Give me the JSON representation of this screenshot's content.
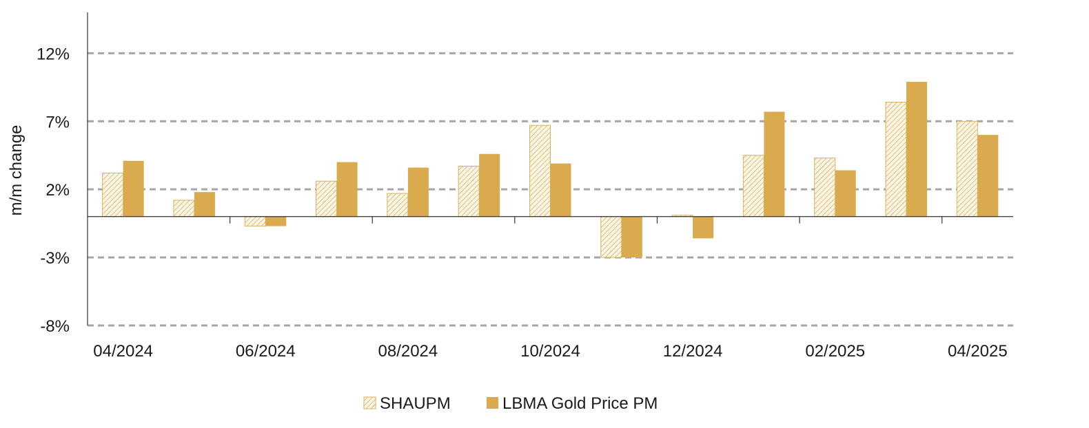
{
  "chart_data": {
    "type": "bar",
    "title": "",
    "xlabel": "",
    "ylabel": "m/m change",
    "ylim": [
      -8,
      15
    ],
    "yticks": [
      -8,
      -3,
      2,
      7,
      12
    ],
    "ytick_labels": [
      "-8%",
      "-3%",
      "2%",
      "7%",
      "12%"
    ],
    "grid": true,
    "categories": [
      "04/2024",
      "05/2024",
      "06/2024",
      "07/2024",
      "08/2024",
      "09/2024",
      "10/2024",
      "11/2024",
      "12/2024",
      "01/2025",
      "02/2025",
      "03/2025",
      "04/2025"
    ],
    "xtick_labels": [
      "04/2024",
      "06/2024",
      "08/2024",
      "10/2024",
      "12/2024",
      "02/2025",
      "04/2025"
    ],
    "series": [
      {
        "name": "SHAUPM",
        "values": [
          3.2,
          1.2,
          -0.7,
          2.6,
          1.7,
          3.7,
          6.7,
          -3.0,
          0.1,
          4.5,
          4.3,
          8.4,
          7.0
        ],
        "color": "#d9b15b",
        "pattern": "hatched"
      },
      {
        "name": "LBMA Gold Price PM",
        "values": [
          4.1,
          1.8,
          -0.7,
          4.0,
          3.6,
          4.6,
          3.9,
          -3.0,
          -1.6,
          7.7,
          3.4,
          9.9,
          6.0
        ],
        "color": "#d9aa4e",
        "pattern": "solid"
      }
    ],
    "legend_position": "bottom-center"
  }
}
